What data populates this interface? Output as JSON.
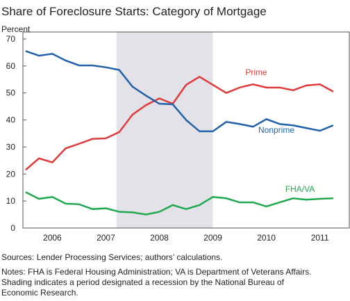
{
  "chart_data": {
    "type": "line",
    "title": "Share of Foreclosure Starts: Category of Mortgage",
    "y_label": "Percent",
    "x": [
      2006,
      2006.25,
      2006.5,
      2006.75,
      2007,
      2007.25,
      2007.5,
      2007.75,
      2008,
      2008.25,
      2008.5,
      2008.75,
      2009,
      2009.25,
      2009.5,
      2009.75,
      2010,
      2010.25,
      2010.5,
      2010.75,
      2011,
      2011.25,
      2011.5,
      2011.75
    ],
    "series": [
      {
        "name": "Prime",
        "color": "#e03a3a",
        "values": [
          21.5,
          25.8,
          24.3,
          29.5,
          31.2,
          33,
          33.2,
          35.5,
          42,
          45.5,
          48,
          46,
          53,
          56,
          53,
          50,
          52,
          53.2,
          52,
          52,
          51,
          52.8,
          53.2,
          50.5
        ]
      },
      {
        "name": "Nonprime",
        "color": "#2161ab",
        "values": [
          65.5,
          63.8,
          64.5,
          62,
          60.2,
          60.2,
          59.5,
          58.5,
          52.3,
          49,
          46,
          45.8,
          40,
          35.8,
          35.8,
          39.3,
          38.5,
          37.5,
          40.3,
          38.5,
          38,
          37,
          36,
          38
        ]
      },
      {
        "name": "FHA/VA",
        "color": "#1fa84f",
        "values": [
          13.3,
          10.8,
          11.5,
          9,
          8.8,
          7,
          7.3,
          6,
          5.8,
          5,
          6,
          8.5,
          7,
          8.5,
          11.5,
          11,
          9.5,
          9.5,
          8,
          9.5,
          11,
          10.5,
          10.8,
          11
        ]
      }
    ],
    "shading": [
      2007.7,
      2009.5
    ],
    "xlim": [
      2005.95,
      2012.05
    ],
    "xticks": [
      {
        "value": 2006.5,
        "label": "2006"
      },
      {
        "value": 2007.5,
        "label": "2007"
      },
      {
        "value": 2008.5,
        "label": "2008"
      },
      {
        "value": 2009.5,
        "label": "2009"
      },
      {
        "value": 2010.5,
        "label": "2010"
      },
      {
        "value": 2011.5,
        "label": "2011"
      }
    ],
    "ylim": [
      0,
      70
    ],
    "yticks": [
      0,
      10,
      20,
      30,
      40,
      50,
      60,
      70
    ],
    "notes": [
      "Sources: Lender Processing Services; authors’ calculations.",
      "Notes: FHA is Federal Housing Administration; VA is Department of Veterans Affairs.",
      "Shading indicates a period designated a recession by the National Bureau of",
      "Economic Research."
    ]
  }
}
